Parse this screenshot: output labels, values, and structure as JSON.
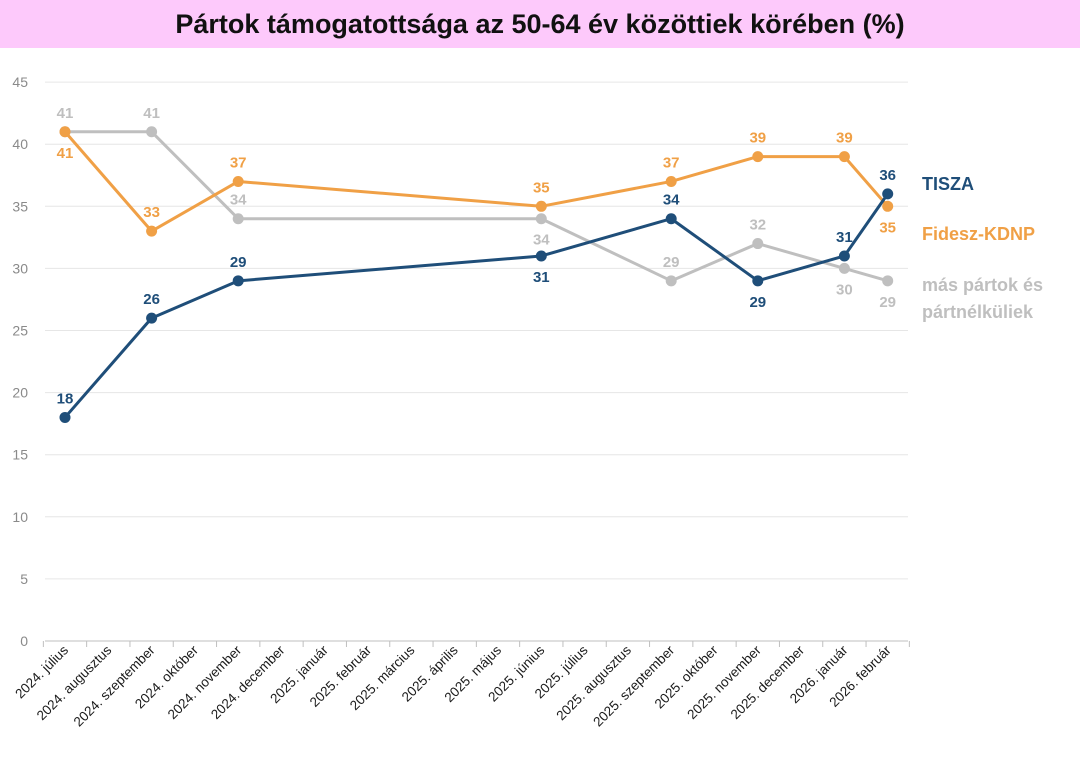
{
  "chart_data": {
    "type": "line",
    "title": "Pártok támogatottsága az 50-64 év közöttiek körében (%)",
    "xlabel": "",
    "ylabel": "",
    "ylim": [
      0,
      45
    ],
    "yticks": [
      0,
      5,
      10,
      15,
      20,
      25,
      30,
      35,
      40,
      45
    ],
    "grid": true,
    "categories": [
      "2024. július",
      "2024. augusztus",
      "2024. szeptember",
      "2024. október",
      "2024. november",
      "2024. december",
      "2025. január",
      "2025. február",
      "2025. március",
      "2025. április",
      "2025. május",
      "2025. június",
      "2025. július",
      "2025. augusztus",
      "2025. szeptember",
      "2025. október",
      "2025. november",
      "2025. december",
      "2026. január",
      "2026. február"
    ],
    "series": [
      {
        "name": "TISZA",
        "color": "#1f4e79",
        "points": [
          [
            0,
            18
          ],
          [
            2,
            26
          ],
          [
            4,
            29
          ],
          [
            11,
            31
          ],
          [
            14,
            34
          ],
          [
            16,
            29
          ],
          [
            18,
            31
          ],
          [
            19,
            36
          ]
        ],
        "label_pos": [
          "above",
          "above",
          "above",
          "below",
          "above",
          "below",
          "above",
          "above"
        ]
      },
      {
        "name": "Fidesz-KDNP",
        "color": "#f0a046",
        "points": [
          [
            0,
            41
          ],
          [
            2,
            33
          ],
          [
            4,
            37
          ],
          [
            11,
            35
          ],
          [
            14,
            37
          ],
          [
            16,
            39
          ],
          [
            18,
            39
          ],
          [
            19,
            35
          ]
        ],
        "label_pos": [
          "below",
          "above",
          "above",
          "above",
          "above",
          "above",
          "above",
          "below"
        ]
      },
      {
        "name": "más pártok és pártnélküliek",
        "legend_lines": [
          "más pártok és",
          "pártnélküliek"
        ],
        "color": "#bfbfbf",
        "points": [
          [
            0,
            41
          ],
          [
            2,
            41
          ],
          [
            4,
            34
          ],
          [
            11,
            34
          ],
          [
            14,
            29
          ],
          [
            16,
            32
          ],
          [
            18,
            30
          ],
          [
            19,
            29
          ]
        ],
        "label_pos": [
          "above",
          "above",
          "above",
          "below",
          "above",
          "above",
          "below",
          "below"
        ]
      }
    ],
    "legend": "right"
  }
}
